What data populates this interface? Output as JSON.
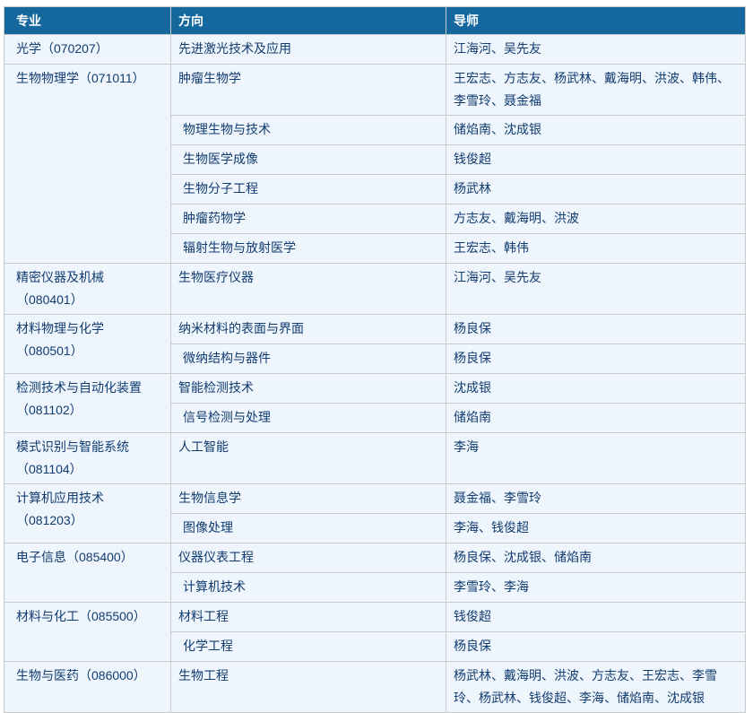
{
  "theme": {
    "header_bg": "#15689e",
    "header_text": "#ffffff",
    "row_bg": "#eef5fc",
    "text": "#113c70",
    "border": "#c6cbc9",
    "page_bg": "#ffffff"
  },
  "table": {
    "headers": {
      "major": "专业",
      "direction": "方向",
      "advisors": "导师"
    },
    "groups": [
      {
        "major": "光学（070207）",
        "rows": [
          {
            "direction": "先进激光技术及应用",
            "advisors": "江海河、吴先友"
          }
        ]
      },
      {
        "major": "生物物理学（071011）",
        "rows": [
          {
            "direction": "肿瘤生物学",
            "advisors": "王宏志、方志友、杨武林、戴海明、洪波、韩伟、李雪玲、聂金福"
          },
          {
            "direction": "物理生物与技术",
            "advisors": "储焰南、沈成银"
          },
          {
            "direction": "生物医学成像",
            "advisors": "钱俊超"
          },
          {
            "direction": "生物分子工程",
            "advisors": "杨武林"
          },
          {
            "direction": "肿瘤药物学",
            "advisors": "方志友、戴海明、洪波"
          },
          {
            "direction": "辐射生物与放射医学",
            "advisors": "王宏志、韩伟"
          }
        ]
      },
      {
        "major": "精密仪器及机械（080401）",
        "rows": [
          {
            "direction": "生物医疗仪器",
            "advisors": "江海河、吴先友"
          }
        ]
      },
      {
        "major": "材料物理与化学（080501）",
        "rows": [
          {
            "direction": "纳米材料的表面与界面",
            "advisors": "杨良保"
          },
          {
            "direction": "微纳结构与器件",
            "advisors": "杨良保"
          }
        ]
      },
      {
        "major": "检测技术与自动化装置（081102）",
        "rows": [
          {
            "direction": "智能检测技术",
            "advisors": "沈成银"
          },
          {
            "direction": "信号检测与处理",
            "advisors": "储焰南"
          }
        ]
      },
      {
        "major": "模式识别与智能系统（081104）",
        "rows": [
          {
            "direction": "人工智能",
            "advisors": "李海"
          }
        ]
      },
      {
        "major": "计算机应用技术（081203）",
        "rows": [
          {
            "direction": "生物信息学",
            "advisors": "聂金福、李雪玲"
          },
          {
            "direction": "图像处理",
            "advisors": "李海、钱俊超"
          }
        ]
      },
      {
        "major": "电子信息（085400）",
        "rows": [
          {
            "direction": "仪器仪表工程",
            "advisors": "杨良保、沈成银、储焰南"
          },
          {
            "direction": "计算机技术",
            "advisors": "李雪玲、李海"
          }
        ]
      },
      {
        "major": "材料与化工（085500）",
        "rows": [
          {
            "direction": "材料工程",
            "advisors": "钱俊超"
          },
          {
            "direction": "化学工程",
            "advisors": "杨良保"
          }
        ]
      },
      {
        "major": "生物与医药（086000）",
        "rows": [
          {
            "direction": "生物工程",
            "advisors": "杨武林、戴海明、洪波、方志友、王宏志、李雪玲、杨武林、钱俊超、李海、储焰南、沈成银"
          }
        ]
      }
    ]
  }
}
